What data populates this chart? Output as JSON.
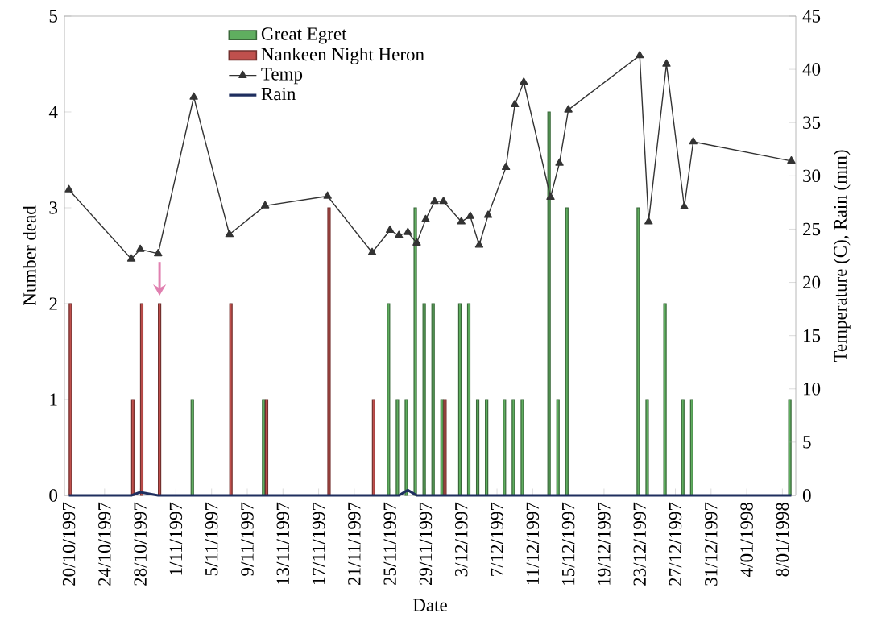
{
  "chart_data": {
    "type": "bar",
    "xlabel": "Date",
    "ylabel": "Number dead",
    "y2label": "Temperature (C), Rain (mm)",
    "legend": "top",
    "xlim": [
      "1997-10-19T12:00",
      "1998-01-09T12:00"
    ],
    "xticks": [
      {
        "value": "1997-10-20",
        "label": "20/10/1997"
      },
      {
        "value": "1997-10-24",
        "label": "24/10/1997"
      },
      {
        "value": "1997-10-28",
        "label": "28/10/1997"
      },
      {
        "value": "1997-11-01",
        "label": "1/11/1997"
      },
      {
        "value": "1997-11-05",
        "label": "5/11/1997"
      },
      {
        "value": "1997-11-09",
        "label": "9/11/1997"
      },
      {
        "value": "1997-11-13",
        "label": "13/11/1997"
      },
      {
        "value": "1997-11-17",
        "label": "17/11/1997"
      },
      {
        "value": "1997-11-21",
        "label": "21/11/1997"
      },
      {
        "value": "1997-11-25",
        "label": "25/11/1997"
      },
      {
        "value": "1997-11-29",
        "label": "29/11/1997"
      },
      {
        "value": "1997-12-03",
        "label": "3/12/1997"
      },
      {
        "value": "1997-12-07",
        "label": "7/12/1997"
      },
      {
        "value": "1997-12-11",
        "label": "11/12/1997"
      },
      {
        "value": "1997-12-15",
        "label": "15/12/1997"
      },
      {
        "value": "1997-12-19",
        "label": "19/12/1997"
      },
      {
        "value": "1997-12-23",
        "label": "23/12/1997"
      },
      {
        "value": "1997-12-27",
        "label": "27/12/1997"
      },
      {
        "value": "1997-12-31",
        "label": "31/12/1997"
      },
      {
        "value": "1998-01-04",
        "label": "4/01/1998"
      },
      {
        "value": "1998-01-08",
        "label": "8/01/1998"
      }
    ],
    "ylim": [
      0,
      5
    ],
    "yticks": [
      0,
      1,
      2,
      3,
      4,
      5
    ],
    "y2lim": [
      0,
      45
    ],
    "y2ticks": [
      0,
      5,
      10,
      15,
      20,
      25,
      30,
      35,
      40,
      45
    ],
    "series": [
      {
        "name": "Great Egret",
        "color": "#5fae5f",
        "x": [
          "1997-11-03",
          "1997-11-11",
          "1997-11-25",
          "1997-11-26",
          "1997-11-27",
          "1997-11-28",
          "1997-11-29",
          "1997-11-30",
          "1997-12-01",
          "1997-12-03",
          "1997-12-04",
          "1997-12-05",
          "1997-12-06",
          "1997-12-08",
          "1997-12-09",
          "1997-12-10",
          "1997-12-13",
          "1997-12-14",
          "1997-12-15",
          "1997-12-23",
          "1997-12-24",
          "1997-12-26",
          "1997-12-28",
          "1997-12-29",
          "1998-01-09"
        ],
        "values": [
          1,
          1,
          2,
          1,
          1,
          3,
          2,
          2,
          1,
          2,
          2,
          1,
          1,
          1,
          1,
          1,
          4,
          1,
          3,
          3,
          1,
          2,
          1,
          1,
          1
        ]
      },
      {
        "name": "Nankeen Night Heron",
        "color": "#c0504d",
        "x": [
          "1997-10-20",
          "1997-10-27",
          "1997-10-28",
          "1997-10-30",
          "1997-11-07",
          "1997-11-11",
          "1997-11-18",
          "1997-11-23",
          "1997-12-01"
        ],
        "values": [
          2,
          1,
          2,
          2,
          2,
          1,
          3,
          1,
          1
        ]
      },
      {
        "name": "Temp",
        "type": "line",
        "axis": "y2",
        "color": "#333333",
        "marker": "triangle",
        "x": [
          "1997-10-20",
          "1997-10-27",
          "1997-10-28",
          "1997-10-30",
          "1997-11-03",
          "1997-11-07",
          "1997-11-11",
          "1997-11-18",
          "1997-11-23",
          "1997-11-25",
          "1997-11-26",
          "1997-11-27",
          "1997-11-28",
          "1997-11-29",
          "1997-11-30",
          "1997-12-01",
          "1997-12-03",
          "1997-12-04",
          "1997-12-05",
          "1997-12-06",
          "1997-12-08",
          "1997-12-09",
          "1997-12-10",
          "1997-12-13",
          "1997-12-14",
          "1997-12-15",
          "1997-12-23",
          "1997-12-24",
          "1997-12-26",
          "1997-12-28",
          "1997-12-29",
          "1998-01-09"
        ],
        "values": [
          28.7,
          22.2,
          23.1,
          22.7,
          37.4,
          24.5,
          27.2,
          28.1,
          22.8,
          24.9,
          24.4,
          24.7,
          23.7,
          25.9,
          27.6,
          27.6,
          25.7,
          26.2,
          23.5,
          26.3,
          30.8,
          36.7,
          38.8,
          28.0,
          31.2,
          36.2,
          41.3,
          25.7,
          40.5,
          27.1,
          33.2,
          31.4
        ]
      },
      {
        "name": "Rain",
        "type": "line",
        "axis": "y2",
        "color": "#1f2f5f",
        "marker": "none",
        "x": [
          "1997-10-20",
          "1997-10-27",
          "1997-10-28",
          "1997-10-30",
          "1997-11-03",
          "1997-11-07",
          "1997-11-11",
          "1997-11-18",
          "1997-11-23",
          "1997-11-25",
          "1997-11-26",
          "1997-11-27",
          "1997-11-28",
          "1997-11-29",
          "1997-11-30",
          "1997-12-01",
          "1997-12-03",
          "1997-12-04",
          "1997-12-05",
          "1997-12-06",
          "1997-12-08",
          "1997-12-09",
          "1997-12-10",
          "1997-12-13",
          "1997-12-14",
          "1997-12-15",
          "1997-12-23",
          "1997-12-24",
          "1997-12-26",
          "1997-12-28",
          "1997-12-29",
          "1998-01-09"
        ],
        "values": [
          0,
          0,
          0.3,
          0,
          0,
          0,
          0,
          0,
          0,
          0,
          0,
          0.5,
          0,
          0,
          0,
          0,
          0,
          0,
          0,
          0,
          0,
          0,
          0,
          0,
          0,
          0,
          0,
          0,
          0,
          0,
          0,
          0
        ]
      }
    ]
  }
}
